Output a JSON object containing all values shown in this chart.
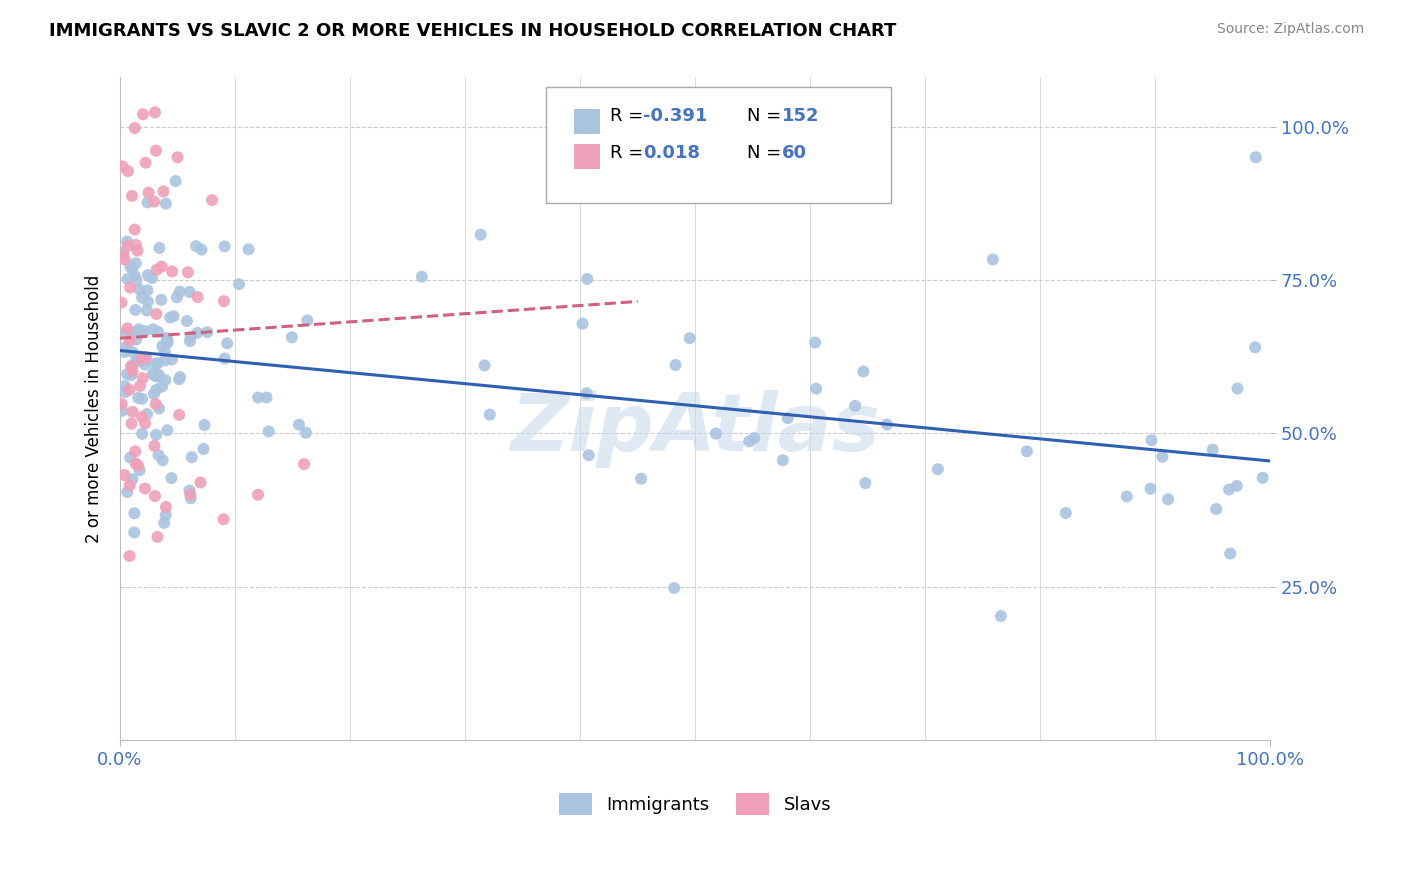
{
  "title": "IMMIGRANTS VS SLAVIC 2 OR MORE VEHICLES IN HOUSEHOLD CORRELATION CHART",
  "source": "Source: ZipAtlas.com",
  "ylabel": "2 or more Vehicles in Household",
  "xlim": [
    0.0,
    1.0
  ],
  "ylim": [
    0.0,
    1.08
  ],
  "xtick_positions": [
    0.0,
    1.0
  ],
  "xtick_labels": [
    "0.0%",
    "100.0%"
  ],
  "ytick_positions": [
    0.25,
    0.5,
    0.75,
    1.0
  ],
  "ytick_labels": [
    "25.0%",
    "50.0%",
    "75.0%",
    "100.0%"
  ],
  "legend_r_immigrants": "-0.391",
  "legend_n_immigrants": "152",
  "legend_r_slavs": "0.018",
  "legend_n_slavs": "60",
  "immigrants_color": "#aac4e0",
  "slavs_color": "#f0a0b8",
  "immigrants_line_color": "#3060b0",
  "slavs_line_color": "#d06080",
  "watermark": "ZipAtlas",
  "tick_color": "#4472c4",
  "grid_color": "#cccccc",
  "imm_line_y0": 0.635,
  "imm_line_y1": 0.455,
  "slav_line_x0": 0.0,
  "slav_line_x1": 0.45,
  "slav_line_y0": 0.655,
  "slav_line_y1": 0.715
}
